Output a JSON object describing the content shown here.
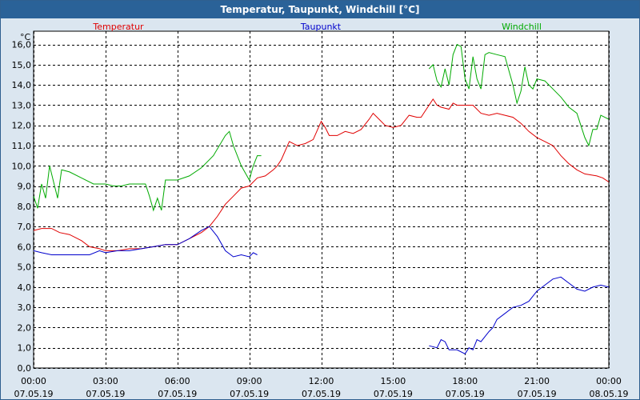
{
  "window": {
    "title": "Temperatur, Taupunkt, Windchill [°C]"
  },
  "chart_data": {
    "type": "line",
    "title": "Temperatur, Taupunkt, Windchill [°C]",
    "ylabel": "°C",
    "ylim": [
      0,
      16.5
    ],
    "xlim": [
      "07.05.19 00:00",
      "08.05.19 00:00"
    ],
    "grid": true,
    "legend_placement": "top",
    "y_ticks": [
      "0,0",
      "1,0",
      "2,0",
      "3,0",
      "4,0",
      "5,0",
      "6,0",
      "7,0",
      "8,0",
      "9,0",
      "10,0",
      "11,0",
      "12,0",
      "13,0",
      "14,0",
      "15,0",
      "16,0"
    ],
    "x_ticks": [
      {
        "time": "00:00",
        "date": "07.05.19"
      },
      {
        "time": "03:00",
        "date": "07.05.19"
      },
      {
        "time": "06:00",
        "date": "07.05.19"
      },
      {
        "time": "09:00",
        "date": "07.05.19"
      },
      {
        "time": "12:00",
        "date": "07.05.19"
      },
      {
        "time": "15:00",
        "date": "07.05.19"
      },
      {
        "time": "18:00",
        "date": "07.05.19"
      },
      {
        "time": "21:00",
        "date": "07.05.19"
      },
      {
        "time": "00:00",
        "date": "08.05.19"
      }
    ],
    "series": [
      {
        "name": "Temperatur",
        "color": "#e00000",
        "points": [
          [
            "00:00",
            6.8
          ],
          [
            "00:20",
            6.9
          ],
          [
            "00:45",
            6.9
          ],
          [
            "01:05",
            6.7
          ],
          [
            "01:30",
            6.6
          ],
          [
            "02:00",
            6.3
          ],
          [
            "02:20",
            6.0
          ],
          [
            "02:45",
            5.9
          ],
          [
            "03:00",
            5.8
          ],
          [
            "03:30",
            5.8
          ],
          [
            "04:00",
            5.9
          ],
          [
            "04:30",
            5.9
          ],
          [
            "05:00",
            6.0
          ],
          [
            "05:30",
            6.1
          ],
          [
            "06:00",
            6.1
          ],
          [
            "06:30",
            6.4
          ],
          [
            "07:00",
            6.7
          ],
          [
            "07:20",
            7.0
          ],
          [
            "07:40",
            7.5
          ],
          [
            "08:00",
            8.1
          ],
          [
            "08:20",
            8.5
          ],
          [
            "08:40",
            8.9
          ],
          [
            "09:00",
            9.0
          ],
          [
            "09:20",
            9.4
          ],
          [
            "09:40",
            9.5
          ],
          [
            "10:00",
            9.8
          ],
          [
            "10:10",
            10.0
          ],
          [
            "10:20",
            10.3
          ],
          [
            "10:40",
            11.2
          ],
          [
            "11:00",
            11.0
          ],
          [
            "11:20",
            11.1
          ],
          [
            "11:40",
            11.3
          ],
          [
            "12:00",
            12.2
          ],
          [
            "12:10",
            11.9
          ],
          [
            "12:20",
            11.5
          ],
          [
            "12:40",
            11.5
          ],
          [
            "13:00",
            11.7
          ],
          [
            "13:20",
            11.6
          ],
          [
            "13:40",
            11.8
          ],
          [
            "14:00",
            12.3
          ],
          [
            "14:10",
            12.6
          ],
          [
            "14:20",
            12.4
          ],
          [
            "14:40",
            12.0
          ],
          [
            "15:00",
            11.9
          ],
          [
            "15:20",
            12.0
          ],
          [
            "15:40",
            12.5
          ],
          [
            "16:00",
            12.4
          ],
          [
            "16:10",
            12.4
          ],
          [
            "16:20",
            12.7
          ],
          [
            "16:40",
            13.3
          ],
          [
            "16:50",
            13.0
          ],
          [
            "17:00",
            12.9
          ],
          [
            "17:20",
            12.8
          ],
          [
            "17:30",
            13.1
          ],
          [
            "17:40",
            13.0
          ],
          [
            "18:00",
            13.0
          ],
          [
            "18:20",
            13.0
          ],
          [
            "18:40",
            12.6
          ],
          [
            "19:00",
            12.5
          ],
          [
            "19:20",
            12.6
          ],
          [
            "19:40",
            12.5
          ],
          [
            "20:00",
            12.4
          ],
          [
            "20:20",
            12.1
          ],
          [
            "20:40",
            11.7
          ],
          [
            "21:00",
            11.4
          ],
          [
            "21:20",
            11.2
          ],
          [
            "21:40",
            11.0
          ],
          [
            "22:00",
            10.5
          ],
          [
            "22:20",
            10.1
          ],
          [
            "22:40",
            9.8
          ],
          [
            "23:00",
            9.6
          ],
          [
            "23:30",
            9.5
          ],
          [
            "23:45",
            9.4
          ],
          [
            "24:00",
            9.2
          ]
        ]
      },
      {
        "name": "Taupunkt",
        "color": "#0000cc",
        "segments": [
          [
            [
              "00:00",
              5.8
            ],
            [
              "00:20",
              5.7
            ],
            [
              "00:45",
              5.6
            ],
            [
              "01:05",
              5.6
            ],
            [
              "01:30",
              5.6
            ],
            [
              "02:00",
              5.6
            ],
            [
              "02:20",
              5.6
            ],
            [
              "02:45",
              5.8
            ],
            [
              "03:00",
              5.7
            ],
            [
              "03:30",
              5.8
            ],
            [
              "04:00",
              5.8
            ],
            [
              "04:30",
              5.9
            ],
            [
              "05:00",
              6.0
            ],
            [
              "05:30",
              6.1
            ],
            [
              "06:00",
              6.1
            ],
            [
              "06:30",
              6.4
            ],
            [
              "07:00",
              6.8
            ],
            [
              "07:20",
              7.0
            ],
            [
              "07:40",
              6.5
            ],
            [
              "08:00",
              5.8
            ],
            [
              "08:20",
              5.5
            ],
            [
              "08:40",
              5.6
            ],
            [
              "09:00",
              5.5
            ],
            [
              "09:10",
              5.7
            ],
            [
              "09:20",
              5.6
            ]
          ],
          [
            [
              "16:30",
              1.1
            ],
            [
              "16:50",
              1.0
            ],
            [
              "17:00",
              1.4
            ],
            [
              "17:10",
              1.3
            ],
            [
              "17:20",
              0.9
            ],
            [
              "17:40",
              0.9
            ],
            [
              "18:00",
              0.7
            ],
            [
              "18:10",
              1.0
            ],
            [
              "18:20",
              0.9
            ],
            [
              "18:30",
              1.4
            ],
            [
              "18:40",
              1.3
            ],
            [
              "19:00",
              1.8
            ],
            [
              "19:10",
              2.0
            ],
            [
              "19:20",
              2.4
            ],
            [
              "19:40",
              2.7
            ],
            [
              "20:00",
              3.0
            ],
            [
              "20:20",
              3.1
            ],
            [
              "20:40",
              3.3
            ],
            [
              "21:00",
              3.8
            ],
            [
              "21:20",
              4.1
            ],
            [
              "21:40",
              4.4
            ],
            [
              "22:00",
              4.5
            ],
            [
              "22:20",
              4.2
            ],
            [
              "22:40",
              3.9
            ],
            [
              "23:00",
              3.8
            ],
            [
              "23:20",
              4.0
            ],
            [
              "23:40",
              4.1
            ],
            [
              "24:00",
              4.0
            ]
          ]
        ]
      },
      {
        "name": "Windchill",
        "color": "#00aa00",
        "segments": [
          [
            [
              "00:00",
              8.5
            ],
            [
              "00:10",
              7.9
            ],
            [
              "00:20",
              9.1
            ],
            [
              "00:30",
              8.4
            ],
            [
              "00:40",
              10.0
            ],
            [
              "00:50",
              9.2
            ],
            [
              "01:00",
              8.4
            ],
            [
              "01:10",
              9.8
            ],
            [
              "01:30",
              9.7
            ],
            [
              "02:00",
              9.4
            ],
            [
              "02:30",
              9.1
            ],
            [
              "03:00",
              9.1
            ],
            [
              "03:20",
              9.0
            ],
            [
              "03:40",
              9.0
            ],
            [
              "04:00",
              9.1
            ],
            [
              "04:20",
              9.1
            ],
            [
              "04:40",
              9.1
            ],
            [
              "04:50",
              8.5
            ],
            [
              "05:00",
              7.8
            ],
            [
              "05:10",
              8.4
            ],
            [
              "05:20",
              7.8
            ],
            [
              "05:30",
              9.3
            ],
            [
              "06:00",
              9.3
            ],
            [
              "06:30",
              9.5
            ],
            [
              "07:00",
              9.9
            ],
            [
              "07:30",
              10.5
            ],
            [
              "08:00",
              11.5
            ],
            [
              "08:10",
              11.7
            ],
            [
              "08:20",
              11.0
            ],
            [
              "08:40",
              10.0
            ],
            [
              "09:00",
              9.3
            ],
            [
              "09:10",
              10.0
            ],
            [
              "09:20",
              10.5
            ],
            [
              "09:30",
              10.5
            ]
          ],
          [
            [
              "16:30",
              14.8
            ],
            [
              "16:40",
              15.0
            ],
            [
              "16:50",
              14.2
            ],
            [
              "17:00",
              13.9
            ],
            [
              "17:10",
              14.8
            ],
            [
              "17:20",
              14.0
            ],
            [
              "17:30",
              15.5
            ],
            [
              "17:40",
              16.0
            ],
            [
              "17:50",
              15.9
            ],
            [
              "18:00",
              14.3
            ],
            [
              "18:10",
              13.8
            ],
            [
              "18:20",
              15.4
            ],
            [
              "18:30",
              14.3
            ],
            [
              "18:40",
              13.8
            ],
            [
              "18:50",
              15.5
            ],
            [
              "19:00",
              15.6
            ],
            [
              "19:20",
              15.5
            ],
            [
              "19:40",
              15.4
            ],
            [
              "20:00",
              14.0
            ],
            [
              "20:10",
              13.1
            ],
            [
              "20:20",
              13.7
            ],
            [
              "20:30",
              14.9
            ],
            [
              "20:40",
              14.0
            ],
            [
              "20:50",
              13.8
            ],
            [
              "21:00",
              14.3
            ],
            [
              "21:20",
              14.2
            ],
            [
              "21:40",
              13.8
            ],
            [
              "22:00",
              13.4
            ],
            [
              "22:20",
              12.9
            ],
            [
              "22:40",
              12.6
            ],
            [
              "23:00",
              11.4
            ],
            [
              "23:10",
              11.0
            ],
            [
              "23:20",
              11.8
            ],
            [
              "23:30",
              11.8
            ],
            [
              "23:40",
              12.5
            ],
            [
              "24:00",
              12.3
            ]
          ]
        ]
      }
    ]
  }
}
